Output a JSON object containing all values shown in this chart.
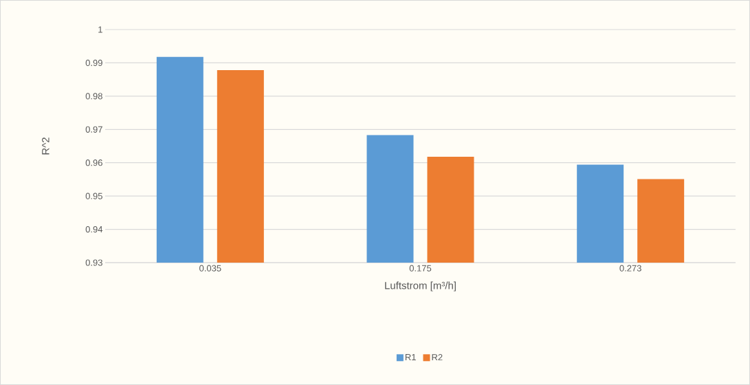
{
  "chart_data": {
    "type": "bar",
    "xlabel": "Luftstrom [m³/h]",
    "ylabel": "R^2",
    "categories": [
      "0.035",
      "0.175",
      "0.273"
    ],
    "series": [
      {
        "name": "R1",
        "color": "#5b9bd5",
        "values": [
          0.9918,
          0.9683,
          0.9594
        ]
      },
      {
        "name": "R2",
        "color": "#ed7d31",
        "values": [
          0.9878,
          0.9618,
          0.9551
        ]
      }
    ],
    "ylim": [
      0.93,
      1
    ],
    "yticks": [
      0.93,
      0.94,
      0.95,
      0.96,
      0.97,
      0.98,
      0.99,
      1
    ],
    "grid": "y",
    "legend": "bottom"
  }
}
